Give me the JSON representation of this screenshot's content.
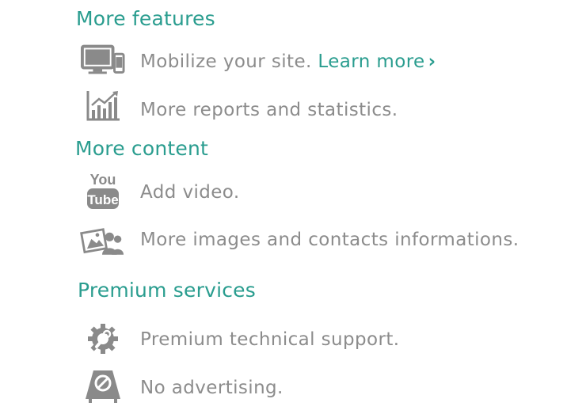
{
  "sections": [
    {
      "heading": "More features",
      "items": [
        {
          "icon": "devices-icon",
          "text": "Mobilize your site.",
          "link_label": "Learn more",
          "link_chevron": "›"
        },
        {
          "icon": "statistics-chart-icon",
          "text": "More reports and statistics."
        }
      ]
    },
    {
      "heading": "More content",
      "items": [
        {
          "icon": "youtube-icon",
          "text": "Add video.",
          "icon_text_top": "You",
          "icon_text_bottom": "Tube"
        },
        {
          "icon": "images-contacts-icon",
          "text": "More images and contacts informations."
        }
      ]
    },
    {
      "heading": "Premium services",
      "items": [
        {
          "icon": "support-wrench-gear-icon",
          "text": "Premium technical support."
        },
        {
          "icon": "no-advertising-sign-icon",
          "text": "No advertising."
        }
      ]
    }
  ],
  "colors": {
    "accent": "#2a9d8f",
    "text": "#8c8c8c",
    "icon": "#8a8a8a"
  }
}
